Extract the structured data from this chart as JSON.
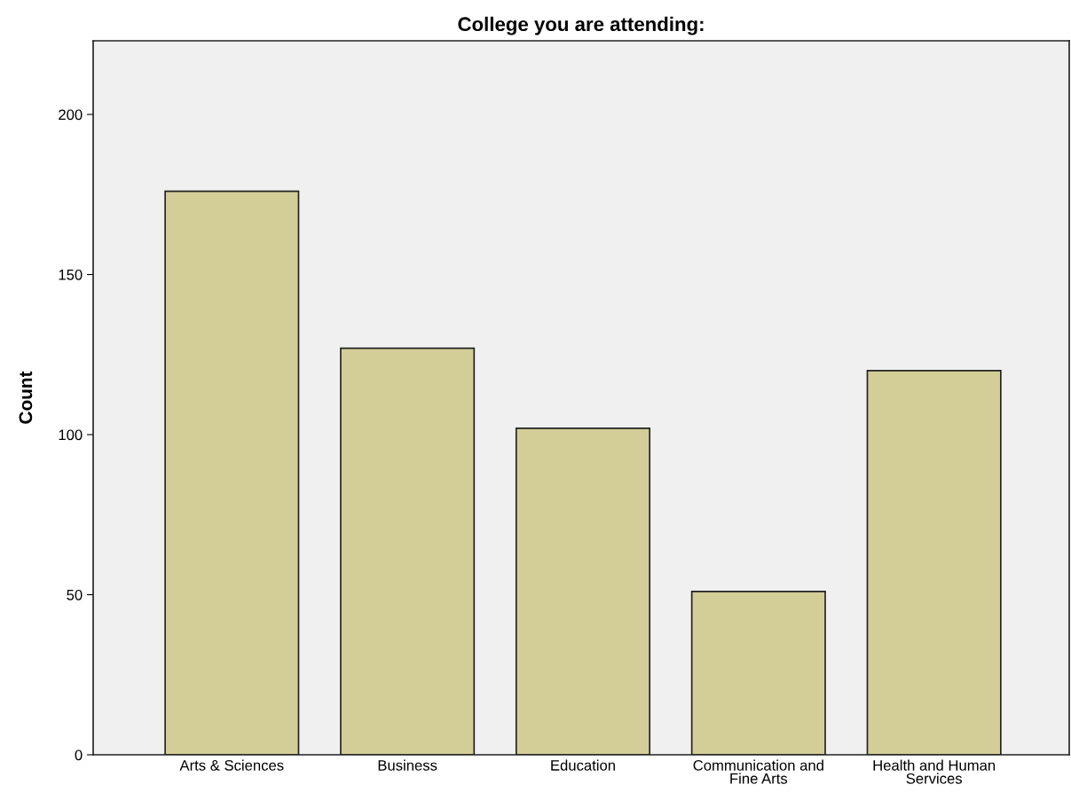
{
  "chart_data": {
    "type": "bar",
    "title": "College you are attending:",
    "ylabel": "Count",
    "categories": [
      "Arts & Sciences",
      "Business",
      "Education",
      "Communication and\nFine Arts",
      "Health and Human\nServices"
    ],
    "values": [
      176,
      127,
      102,
      51,
      120
    ],
    "color": "#d3ce97",
    "ylim": [
      0,
      223
    ],
    "yticks": [
      0,
      50,
      100,
      150,
      200
    ],
    "grid": false,
    "legend": false
  }
}
